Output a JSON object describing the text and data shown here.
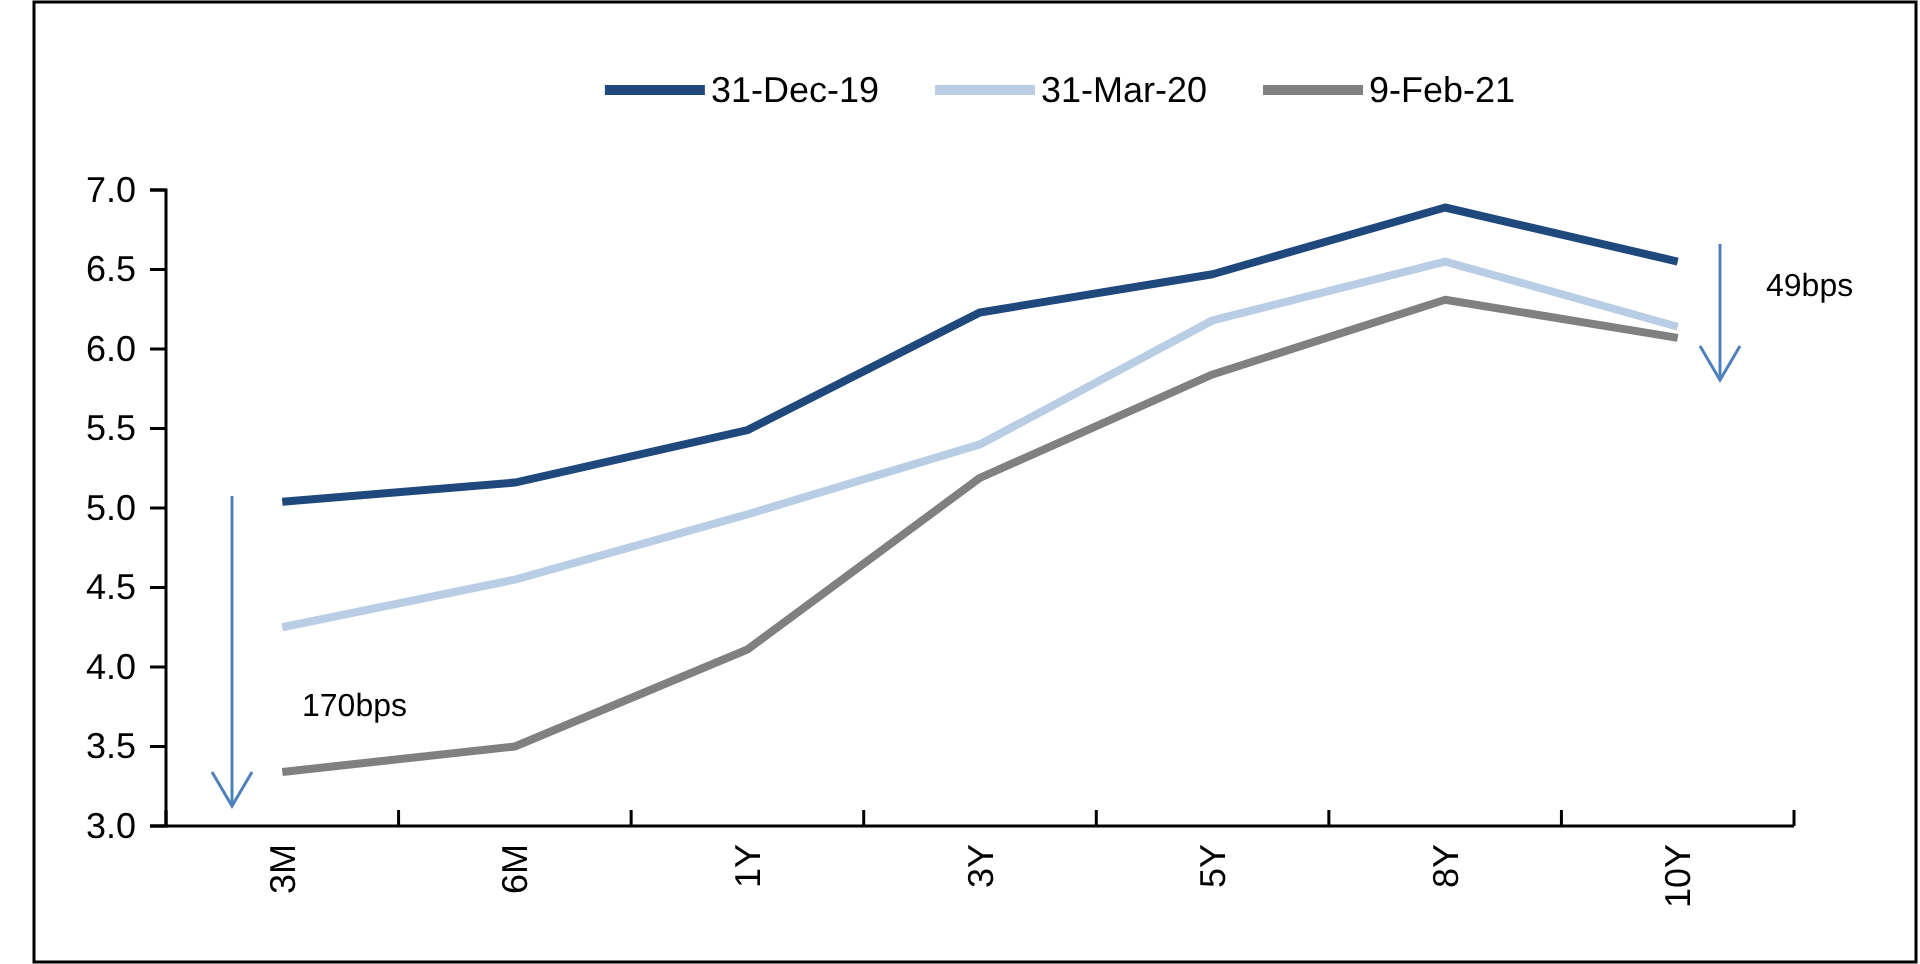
{
  "chart_data": {
    "type": "line",
    "categories": [
      "3M",
      "6M",
      "1Y",
      "3Y",
      "5Y",
      "8Y",
      "10Y"
    ],
    "series": [
      {
        "name": "31-Dec-19",
        "color": "#1f497d",
        "values": [
          5.04,
          5.16,
          5.49,
          6.23,
          6.47,
          6.89,
          6.55
        ]
      },
      {
        "name": "31-Mar-20",
        "color": "#b9cde5",
        "values": [
          4.25,
          4.55,
          4.96,
          5.4,
          6.18,
          6.55,
          6.14
        ]
      },
      {
        "name": "9-Feb-21",
        "color": "#808080",
        "values": [
          3.34,
          3.5,
          4.11,
          5.19,
          5.84,
          6.31,
          6.07
        ]
      }
    ],
    "ylim": [
      3.0,
      7.0
    ],
    "yticks": [
      {
        "value": 3,
        "label": "3.0"
      },
      {
        "value": 3.5,
        "label": "3.5"
      },
      {
        "value": 4,
        "label": "4.0"
      },
      {
        "value": 4.5,
        "label": "4.5"
      },
      {
        "value": 5,
        "label": "5.0"
      },
      {
        "value": 5.5,
        "label": "5.5"
      },
      {
        "value": 6,
        "label": "6.0"
      },
      {
        "value": 6.5,
        "label": "6.5"
      },
      {
        "value": 7,
        "label": "7.0"
      }
    ],
    "grid": false,
    "legend": "top",
    "marker": "none",
    "line_style": "solid",
    "annotations": [
      "170bps",
      "49bps"
    ]
  }
}
